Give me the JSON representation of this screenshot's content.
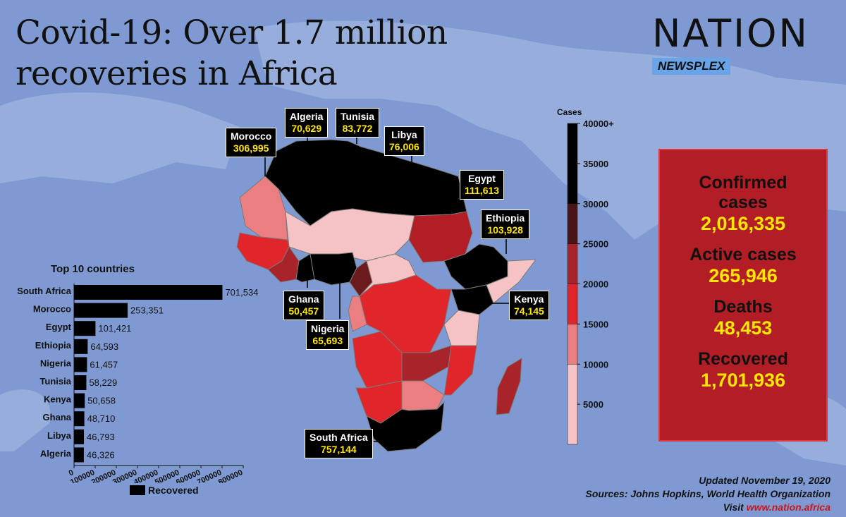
{
  "header": {
    "title_line1": "Covid-19: Over 1.7 million",
    "title_line2": "recoveries in Africa",
    "brand": "NATION",
    "brand_sub": "NEWSPLEX"
  },
  "map_callouts": [
    {
      "country": "Morocco",
      "value": "306,995"
    },
    {
      "country": "Algeria",
      "value": "70,629"
    },
    {
      "country": "Tunisia",
      "value": "83,772"
    },
    {
      "country": "Libya",
      "value": "76,006"
    },
    {
      "country": "Egypt",
      "value": "111,613"
    },
    {
      "country": "Ethiopia",
      "value": "103,928"
    },
    {
      "country": "Kenya",
      "value": "74,145"
    },
    {
      "country": "Ghana",
      "value": "50,457"
    },
    {
      "country": "Nigeria",
      "value": "65,693"
    },
    {
      "country": "South Africa",
      "value": "757,144"
    }
  ],
  "stats": {
    "confirmed_label": "Confirmed cases",
    "confirmed_value": "2,016,335",
    "active_label": "Active cases",
    "active_value": "265,946",
    "deaths_label": "Deaths",
    "deaths_value": "48,453",
    "recovered_label": "Recovered",
    "recovered_value": "1,701,936"
  },
  "footer": {
    "updated": "Updated November 19, 2020",
    "sources": "Sources: Johns Hopkins, World Health Organization",
    "visit": "Visit",
    "url": "www.nation.africa"
  },
  "colors": {
    "background": "#7f9ad2",
    "bar": "#000000",
    "stats_box": "#b31d25",
    "highlight": "#ffe600",
    "scale": [
      "#f6c3c4",
      "#ea7e80",
      "#e0262b",
      "#a8232a",
      "#4a1517",
      "#000000"
    ]
  },
  "chart_data": [
    {
      "type": "bar",
      "orientation": "horizontal",
      "title": "Top 10 countries",
      "categories": [
        "South Africa",
        "Morocco",
        "Egypt",
        "Ethiopia",
        "Nigeria",
        "Tunisia",
        "Kenya",
        "Ghana",
        "Libya",
        "Algeria"
      ],
      "series": [
        {
          "name": "Recovered",
          "values": [
            701534,
            253351,
            101421,
            64593,
            61457,
            58229,
            50658,
            48710,
            46793,
            46326
          ]
        }
      ],
      "value_labels": [
        "701,534",
        "253,351",
        "101,421",
        "64,593",
        "61,457",
        "58,229",
        "50,658",
        "48,710",
        "46,793",
        "46,326"
      ],
      "xticks": [
        0,
        100000,
        200000,
        300000,
        400000,
        500000,
        600000,
        700000,
        800000
      ],
      "xlim": [
        0,
        800000
      ],
      "legend": "bottom"
    },
    {
      "type": "heatmap",
      "subtype": "choropleth",
      "legend_title": "Cases",
      "scale_ticks": [
        "40000+",
        "35000",
        "30000",
        "25000",
        "20000",
        "15000",
        "10000",
        "5000"
      ],
      "scale_range": [
        0,
        40000
      ]
    }
  ]
}
